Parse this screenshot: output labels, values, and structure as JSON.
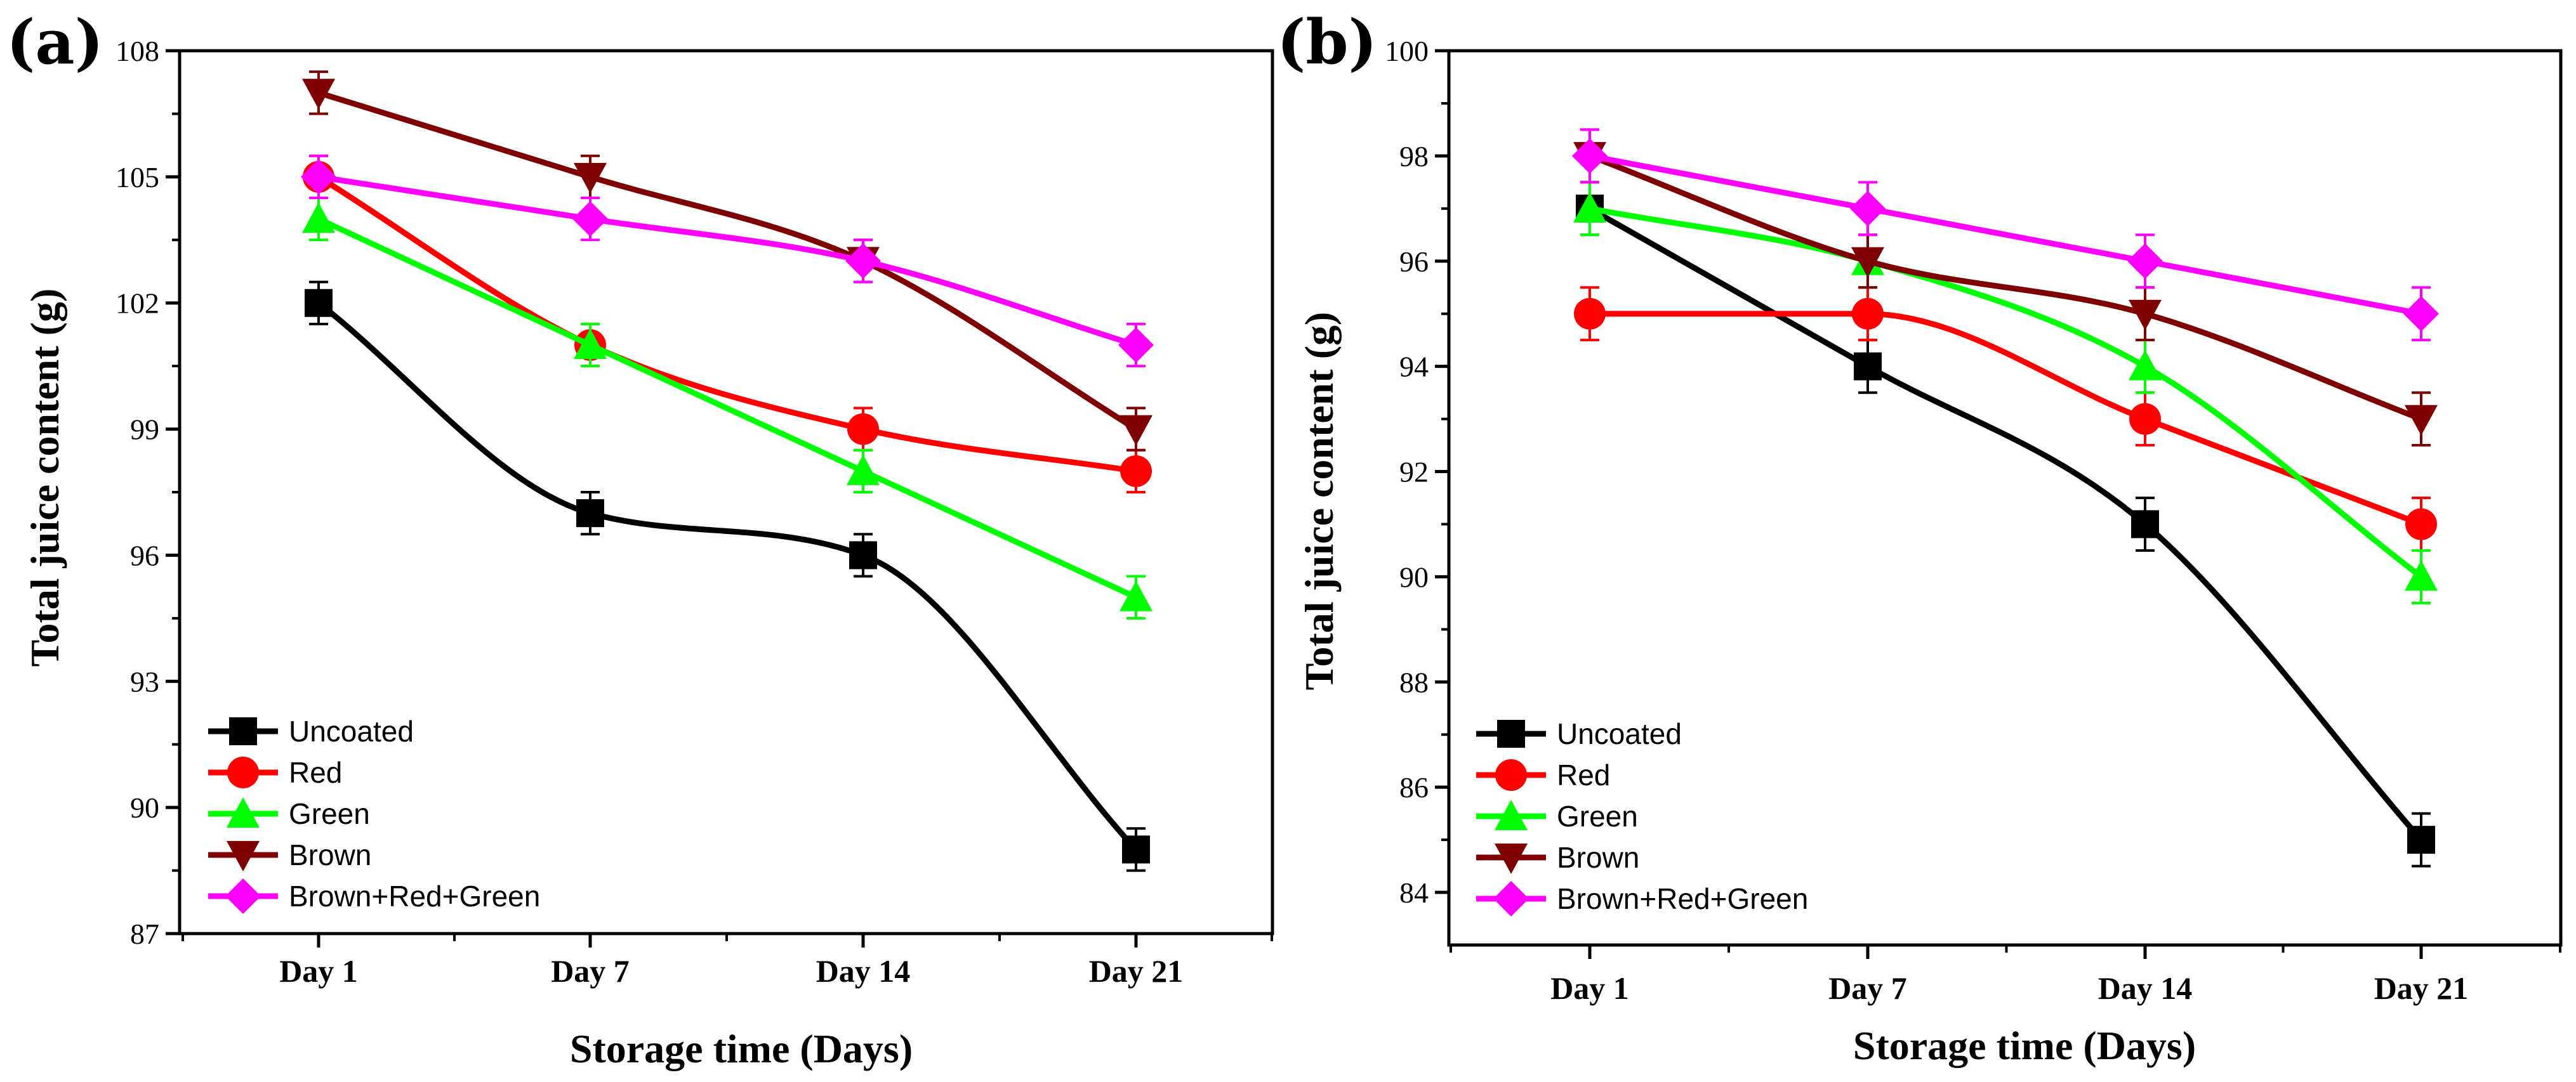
{
  "colors": {
    "Uncoated": "#000000",
    "Red": "#ff0000",
    "Green": "#00ff00",
    "Brown": "#7f0000",
    "Brown+Red+Green": "#ff00ff"
  },
  "chart_data": [
    {
      "panel_label": "(a)",
      "type": "line",
      "title": "",
      "xlabel": "Storage time (Days)",
      "ylabel": "Total juice content (g)",
      "categories": [
        "Day 1",
        "Day 7",
        "Day 14",
        "Day 21"
      ],
      "ylim": [
        87,
        108
      ],
      "yticks": [
        87,
        90,
        93,
        96,
        99,
        102,
        105,
        108
      ],
      "ytick_labels": [
        "87",
        "90",
        "93",
        "96",
        "99",
        "102",
        "105",
        "108"
      ],
      "legend_position": "bottom-left",
      "error": 0.5,
      "series": [
        {
          "name": "Uncoated",
          "marker": "square",
          "values": [
            102,
            97,
            96,
            89
          ]
        },
        {
          "name": "Red",
          "marker": "circle",
          "values": [
            105,
            101,
            99,
            98
          ]
        },
        {
          "name": "Green",
          "marker": "triangle-up",
          "values": [
            104,
            101,
            98,
            95
          ]
        },
        {
          "name": "Brown",
          "marker": "triangle-down",
          "values": [
            107,
            105,
            103,
            99
          ]
        },
        {
          "name": "Brown+Red+Green",
          "marker": "diamond",
          "values": [
            105,
            104,
            103,
            101
          ]
        }
      ]
    },
    {
      "panel_label": "(b)",
      "type": "line",
      "title": "",
      "xlabel": "Storage time (Days)",
      "ylabel": "Total juice content (g)",
      "categories": [
        "Day 1",
        "Day 7",
        "Day 14",
        "Day 21"
      ],
      "ylim": [
        83,
        100
      ],
      "yticks": [
        84,
        86,
        88,
        90,
        92,
        94,
        96,
        98,
        100
      ],
      "ytick_labels": [
        "84",
        "86",
        "88",
        "90",
        "92",
        "94",
        "96",
        "98",
        "100"
      ],
      "legend_position": "bottom-left",
      "error": 0.5,
      "series": [
        {
          "name": "Uncoated",
          "marker": "square",
          "values": [
            97,
            94,
            91,
            85
          ]
        },
        {
          "name": "Red",
          "marker": "circle",
          "values": [
            95,
            95,
            93,
            91
          ]
        },
        {
          "name": "Green",
          "marker": "triangle-up",
          "values": [
            97,
            96,
            94,
            90
          ]
        },
        {
          "name": "Brown",
          "marker": "triangle-down",
          "values": [
            98,
            96,
            95,
            93
          ]
        },
        {
          "name": "Brown+Red+Green",
          "marker": "diamond",
          "values": [
            98,
            97,
            96,
            95
          ]
        }
      ]
    }
  ]
}
